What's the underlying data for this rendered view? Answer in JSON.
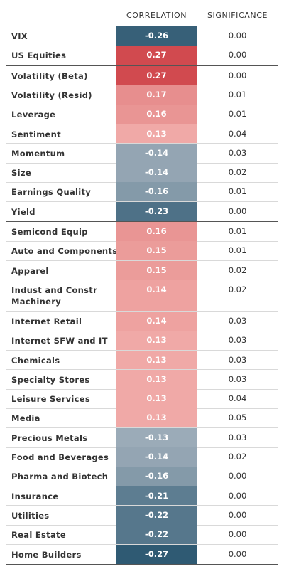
{
  "chart_data": {
    "type": "table",
    "columns": [
      "",
      "CORRELATION",
      "SIGNIFICANCE"
    ],
    "groups": [
      {
        "rows": [
          {
            "label": "VIX",
            "correlation": "-0.26",
            "significance": "0.00",
            "value": -0.26
          },
          {
            "label": "US Equities",
            "correlation": "0.27",
            "significance": "0.00",
            "value": 0.27
          }
        ]
      },
      {
        "rows": [
          {
            "label": "Volatility (Beta)",
            "correlation": "0.27",
            "significance": "0.00",
            "value": 0.27
          },
          {
            "label": "Volatility (Resid)",
            "correlation": "0.17",
            "significance": "0.01",
            "value": 0.17
          },
          {
            "label": "Leverage",
            "correlation": "0.16",
            "significance": "0.01",
            "value": 0.16
          },
          {
            "label": "Sentiment",
            "correlation": "0.13",
            "significance": "0.04",
            "value": 0.13
          },
          {
            "label": "Momentum",
            "correlation": "-0.14",
            "significance": "0.03",
            "value": -0.14
          },
          {
            "label": "Size",
            "correlation": "-0.14",
            "significance": "0.02",
            "value": -0.14
          },
          {
            "label": "Earnings Quality",
            "correlation": "-0.16",
            "significance": "0.01",
            "value": -0.16
          },
          {
            "label": "Yield",
            "correlation": "-0.23",
            "significance": "0.00",
            "value": -0.23
          }
        ]
      },
      {
        "rows": [
          {
            "label": "Semicond Equip",
            "correlation": "0.16",
            "significance": "0.01",
            "value": 0.16
          },
          {
            "label": "Auto and Components",
            "correlation": "0.15",
            "significance": "0.01",
            "value": 0.15
          },
          {
            "label": "Apparel",
            "correlation": "0.15",
            "significance": "0.02",
            "value": 0.15
          },
          {
            "label": "Indust and Constr Machinery",
            "correlation": "0.14",
            "significance": "0.02",
            "value": 0.14
          },
          {
            "label": "Internet Retail",
            "correlation": "0.14",
            "significance": "0.03",
            "value": 0.14
          },
          {
            "label": "Internet SFW and IT",
            "correlation": "0.13",
            "significance": "0.03",
            "value": 0.13
          },
          {
            "label": "Chemicals",
            "correlation": "0.13",
            "significance": "0.03",
            "value": 0.13
          },
          {
            "label": "Specialty Stores",
            "correlation": "0.13",
            "significance": "0.03",
            "value": 0.13
          },
          {
            "label": "Leisure Services",
            "correlation": "0.13",
            "significance": "0.04",
            "value": 0.13
          },
          {
            "label": "Media",
            "correlation": "0.13",
            "significance": "0.05",
            "value": 0.13
          },
          {
            "label": "Precious Metals",
            "correlation": "-0.13",
            "significance": "0.03",
            "value": -0.13
          },
          {
            "label": "Food and Beverages",
            "correlation": "-0.14",
            "significance": "0.02",
            "value": -0.14
          },
          {
            "label": "Pharma and Biotech",
            "correlation": "-0.16",
            "significance": "0.00",
            "value": -0.16
          },
          {
            "label": "Insurance",
            "correlation": "-0.21",
            "significance": "0.00",
            "value": -0.21
          },
          {
            "label": "Utilities",
            "correlation": "-0.22",
            "significance": "0.00",
            "value": -0.22
          },
          {
            "label": "Real Estate",
            "correlation": "-0.22",
            "significance": "0.00",
            "value": -0.22
          },
          {
            "label": "Home Builders",
            "correlation": "-0.27",
            "significance": "0.00",
            "value": -0.27
          }
        ]
      }
    ]
  },
  "colors": {
    "pos_light": "#f2b0ad",
    "pos_dark": "#d14a4f",
    "neg_light": "#a3b1bd",
    "neg_dark": "#2f5a73"
  }
}
